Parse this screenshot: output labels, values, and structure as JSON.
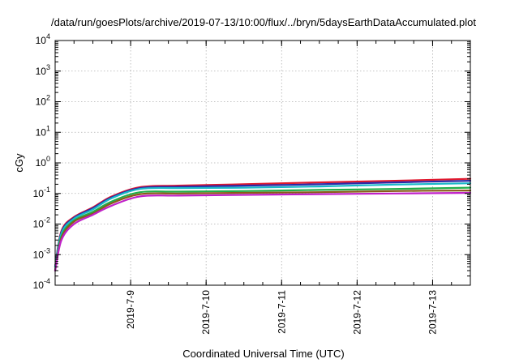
{
  "chart_data": {
    "type": "line",
    "title": "/data/run/goesPlots/archive/2019-07-13/10:00/flux/../bryn/5daysEarthDataAccumulated.plot",
    "xlabel": "Coordinated Universal Time (UTC)",
    "ylabel": "cGy",
    "y_scale": "log",
    "ylim": [
      0.0001,
      10000
    ],
    "xlim": [
      "2019-07-08T00:00",
      "2019-07-13T12:00"
    ],
    "x_ticks": [
      "2019-7-9",
      "2019-7-10",
      "2019-7-11",
      "2019-7-12",
      "2019-7-13"
    ],
    "y_ticks": [
      {
        "base": "10",
        "exp": "-4",
        "value": 0.0001
      },
      {
        "base": "10",
        "exp": "-3",
        "value": 0.001
      },
      {
        "base": "10",
        "exp": "-2",
        "value": 0.01
      },
      {
        "base": "10",
        "exp": "-1",
        "value": 0.1
      },
      {
        "base": "10",
        "exp": "0",
        "value": 1
      },
      {
        "base": "10",
        "exp": "1",
        "value": 10
      },
      {
        "base": "10",
        "exp": "2",
        "value": 100
      },
      {
        "base": "10",
        "exp": "3",
        "value": 1000
      },
      {
        "base": "10",
        "exp": "4",
        "value": 10000
      }
    ],
    "grid": true,
    "x": [
      "2019-07-08T00:00",
      "2019-07-08T02:00",
      "2019-07-08T06:00",
      "2019-07-08T12:00",
      "2019-07-08T18:00",
      "2019-07-09T03:00",
      "2019-07-09T15:00",
      "2019-07-10T12:00",
      "2019-07-11T12:00",
      "2019-07-12T12:00",
      "2019-07-13T12:00"
    ],
    "series": [
      {
        "color": "#e0182d",
        "values": [
          0.0004,
          0.006,
          0.017,
          0.035,
          0.08,
          0.16,
          0.18,
          0.2,
          0.23,
          0.26,
          0.3
        ]
      },
      {
        "color": "#2a2aa8",
        "values": [
          0.0004,
          0.0055,
          0.016,
          0.033,
          0.075,
          0.15,
          0.165,
          0.18,
          0.2,
          0.23,
          0.26
        ]
      },
      {
        "color": "#19b8c8",
        "values": [
          0.0004,
          0.005,
          0.015,
          0.03,
          0.07,
          0.14,
          0.15,
          0.155,
          0.17,
          0.195,
          0.215
        ]
      },
      {
        "color": "#1fae4a",
        "values": [
          0.0003,
          0.004,
          0.013,
          0.025,
          0.055,
          0.11,
          0.115,
          0.12,
          0.13,
          0.14,
          0.155
        ]
      },
      {
        "color": "#8a5a1a",
        "values": [
          0.0003,
          0.0035,
          0.012,
          0.022,
          0.048,
          0.095,
          0.1,
          0.105,
          0.11,
          0.12,
          0.125
        ]
      },
      {
        "color": "#c020c8",
        "values": [
          0.0003,
          0.003,
          0.01,
          0.02,
          0.04,
          0.08,
          0.085,
          0.09,
          0.095,
          0.1,
          0.105
        ]
      }
    ]
  }
}
